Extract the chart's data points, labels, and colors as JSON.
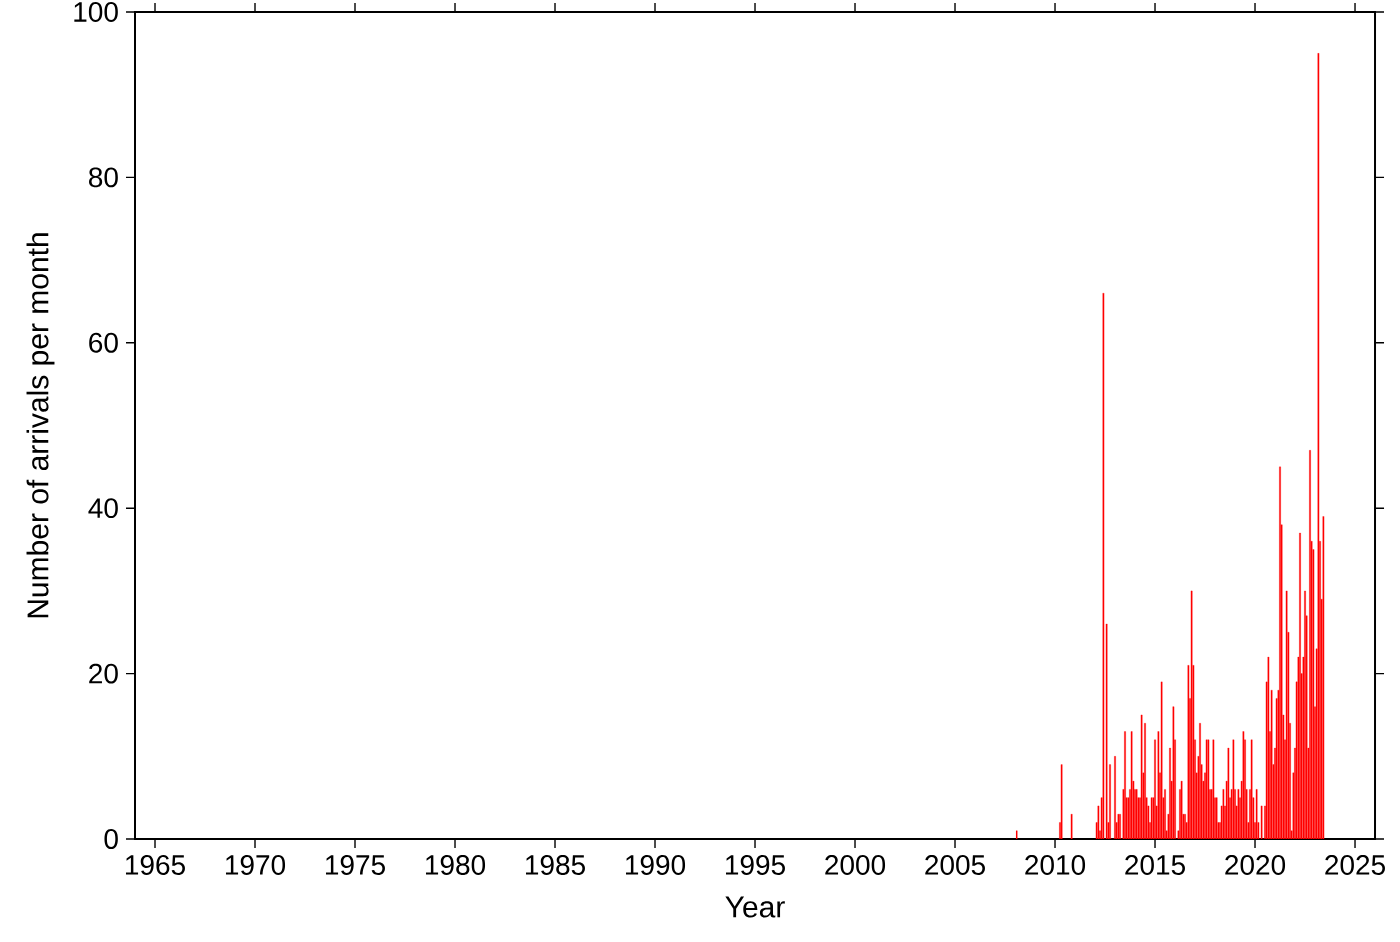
{
  "chart_data": {
    "type": "bar",
    "xlabel": "Year",
    "ylabel": "Number of arrivals per month",
    "color": "#ff0000",
    "x": [
      2008.08,
      2010.25,
      2010.33,
      2010.83,
      2012.08,
      2012.17,
      2012.25,
      2012.33,
      2012.42,
      2012.5,
      2012.58,
      2012.67,
      2012.75,
      2012.83,
      2012.92,
      2013,
      2013.08,
      2013.17,
      2013.25,
      2013.33,
      2013.42,
      2013.5,
      2013.58,
      2013.67,
      2013.75,
      2013.83,
      2013.92,
      2014,
      2014.08,
      2014.17,
      2014.25,
      2014.33,
      2014.42,
      2014.5,
      2014.58,
      2014.67,
      2014.75,
      2014.83,
      2014.92,
      2015,
      2015.08,
      2015.17,
      2015.25,
      2015.33,
      2015.42,
      2015.5,
      2015.58,
      2015.67,
      2015.75,
      2015.83,
      2015.92,
      2016,
      2016.08,
      2016.17,
      2016.25,
      2016.33,
      2016.42,
      2016.5,
      2016.58,
      2016.67,
      2016.75,
      2016.83,
      2016.92,
      2017,
      2017.08,
      2017.17,
      2017.25,
      2017.33,
      2017.42,
      2017.5,
      2017.58,
      2017.67,
      2017.75,
      2017.83,
      2017.92,
      2018,
      2018.08,
      2018.17,
      2018.25,
      2018.33,
      2018.42,
      2018.5,
      2018.58,
      2018.67,
      2018.75,
      2018.83,
      2018.92,
      2019,
      2019.08,
      2019.17,
      2019.25,
      2019.33,
      2019.42,
      2019.5,
      2019.58,
      2019.67,
      2019.75,
      2019.83,
      2019.92,
      2020,
      2020.08,
      2020.17,
      2020.25,
      2020.33,
      2020.42,
      2020.5,
      2020.58,
      2020.67,
      2020.75,
      2020.83,
      2020.92,
      2021,
      2021.08,
      2021.17,
      2021.25,
      2021.33,
      2021.42,
      2021.5,
      2021.58,
      2021.67,
      2021.75,
      2021.83,
      2021.92,
      2022,
      2022.08,
      2022.17,
      2022.25,
      2022.33,
      2022.42,
      2022.5,
      2022.58,
      2022.67,
      2022.75,
      2022.83,
      2022.92,
      2023,
      2023.08,
      2023.17,
      2023.25,
      2023.33,
      2023.42
    ],
    "values": [
      1,
      2,
      9,
      3,
      2,
      4,
      1,
      5,
      66,
      0,
      26,
      2,
      9,
      0,
      0,
      10,
      2,
      3,
      3,
      0,
      6,
      13,
      5,
      5,
      6,
      13,
      7,
      6,
      6,
      5,
      5,
      15,
      8,
      14,
      5,
      4,
      2,
      5,
      5,
      12,
      4,
      13,
      8,
      19,
      5,
      6,
      1,
      3,
      11,
      7,
      16,
      12,
      0,
      1,
      6,
      7,
      3,
      3,
      2,
      21,
      17,
      30,
      21,
      12,
      8,
      10,
      14,
      9,
      7,
      8,
      12,
      12,
      6,
      6,
      12,
      5,
      5,
      2,
      2,
      4,
      6,
      4,
      7,
      11,
      5,
      6,
      12,
      6,
      4,
      6,
      5,
      7,
      13,
      12,
      6,
      2,
      6,
      12,
      5,
      2,
      6,
      2,
      0,
      4,
      0,
      4,
      19,
      22,
      13,
      18,
      9,
      11,
      17,
      18,
      45,
      38,
      15,
      12,
      30,
      25,
      14,
      1,
      8,
      11,
      19,
      22,
      37,
      20,
      22,
      30,
      27,
      11,
      47,
      36,
      35,
      16,
      23,
      95,
      36,
      29,
      39
    ],
    "xlim": [
      1964,
      2026
    ],
    "ylim": [
      0,
      100
    ],
    "xticks": [
      1965,
      1970,
      1975,
      1980,
      1985,
      1990,
      1995,
      2000,
      2005,
      2010,
      2015,
      2020,
      2025
    ],
    "yticks": [
      0,
      20,
      40,
      60,
      80,
      100
    ]
  }
}
